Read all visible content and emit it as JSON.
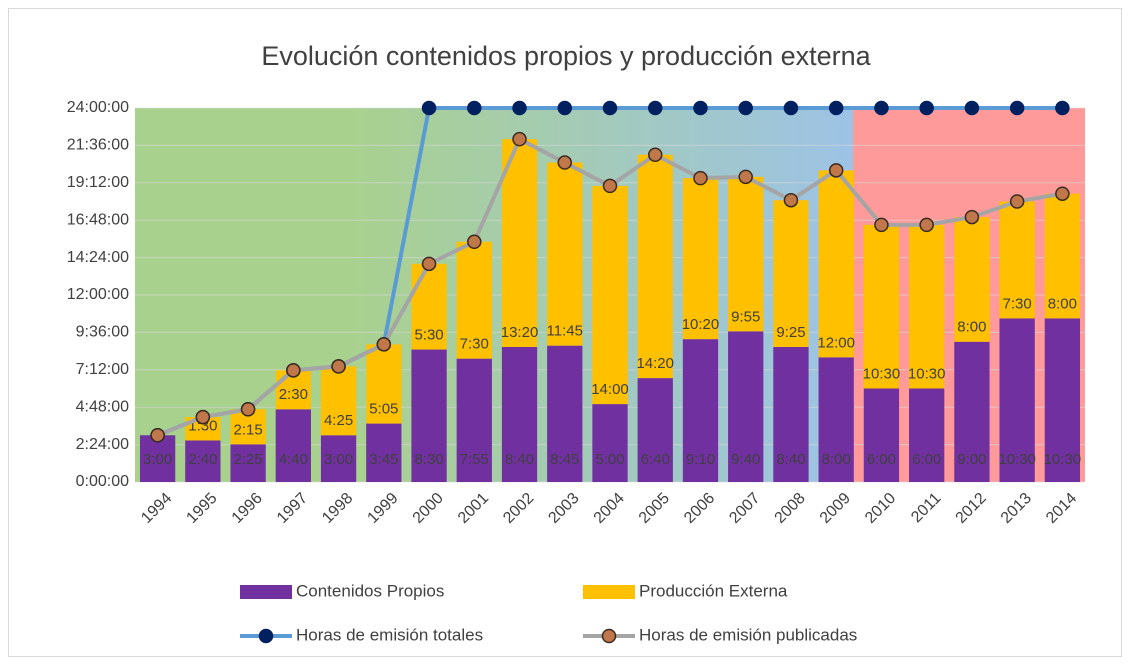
{
  "chart_data": {
    "type": "bar",
    "title": "Evolución contenidos propios y producción externa",
    "categories": [
      "1994",
      "1995",
      "1996",
      "1997",
      "1998",
      "1999",
      "2000",
      "2001",
      "2002",
      "2003",
      "2004",
      "2005",
      "2006",
      "2007",
      "2008",
      "2009",
      "2010",
      "2011",
      "2012",
      "2013",
      "2014"
    ],
    "ylim": [
      0,
      24
    ],
    "yticks": [
      {
        "value": 0,
        "label": "0:00:00"
      },
      {
        "value": 2.4,
        "label": "2:24:00"
      },
      {
        "value": 4.8,
        "label": "4:48:00"
      },
      {
        "value": 7.2,
        "label": "7:12:00"
      },
      {
        "value": 9.6,
        "label": "9:36:00"
      },
      {
        "value": 12,
        "label": "12:00:00"
      },
      {
        "value": 14.4,
        "label": "14:24:00"
      },
      {
        "value": 16.8,
        "label": "16:48:00"
      },
      {
        "value": 19.2,
        "label": "19:12:00"
      },
      {
        "value": 21.6,
        "label": "21:36:00"
      },
      {
        "value": 24,
        "label": "24:00:00"
      }
    ],
    "grid": true,
    "stacked": true,
    "series": [
      {
        "name": "Contenidos Propios",
        "type": "bar",
        "color": "#7030a0",
        "values": [
          3,
          2.6667,
          2.4167,
          4.6667,
          3,
          3.75,
          8.5,
          7.9167,
          8.6667,
          8.75,
          5,
          6.6667,
          9.1667,
          9.6667,
          8.6667,
          8,
          6,
          6,
          9,
          10.5,
          10.5
        ],
        "value_labels": [
          "3:00",
          "2:40",
          "2:25",
          "4:40",
          "3:00",
          "3:45",
          "8:30",
          "7:55",
          "8:40",
          "8:45",
          "5:00",
          "6:40",
          "9:10",
          "9:40",
          "8:40",
          "8:00",
          "6:00",
          "6:00",
          "9:00",
          "10:30",
          "10:30"
        ]
      },
      {
        "name": "Producción Externa",
        "type": "bar",
        "color": "#ffc000",
        "values": [
          null,
          1.5,
          2.25,
          2.5,
          4.4167,
          5.0833,
          5.5,
          7.5,
          13.3333,
          11.75,
          14,
          14.3333,
          10.3333,
          9.9167,
          9.4167,
          12,
          10.5,
          10.5,
          8,
          7.5,
          8
        ],
        "value_labels": [
          null,
          "1:30",
          "2:15",
          "2:30",
          "4:25",
          "5:05",
          "5:30",
          "7:30",
          "13:20",
          "11:45",
          "14:00",
          "14:20",
          "10:20",
          "9:55",
          "9:25",
          "12:00",
          "10:30",
          "10:30",
          "8:00",
          "7:30",
          "8:00"
        ]
      },
      {
        "name": "Horas de emisión totales",
        "type": "line",
        "color": "#5b9bd5",
        "marker_color": "#002060",
        "values": [
          3,
          4.1667,
          4.6667,
          7.1667,
          7.4167,
          8.8333,
          24,
          24,
          24,
          24,
          24,
          24,
          24,
          24,
          24,
          24,
          24,
          24,
          24,
          24,
          24
        ]
      },
      {
        "name": "Horas de emisión publicadas",
        "type": "line",
        "color": "#a5a5a5",
        "marker_color": "#c0784a",
        "values": [
          3,
          4.1667,
          4.6667,
          7.1667,
          7.4167,
          8.8333,
          14,
          15.4167,
          22,
          20.5,
          19,
          21,
          19.5,
          19.5833,
          18.0833,
          20,
          16.5,
          16.5,
          17,
          18,
          18.5
        ]
      }
    ]
  }
}
